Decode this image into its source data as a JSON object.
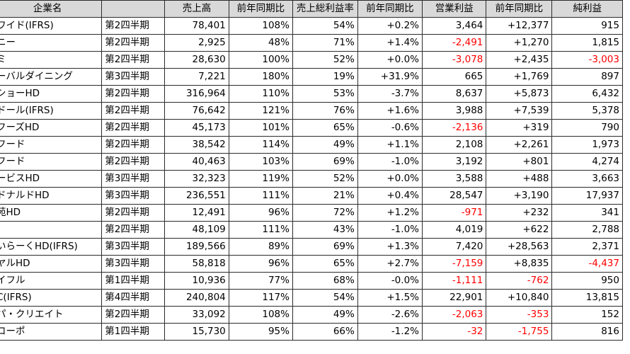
{
  "columns": [
    "企業名",
    "",
    "売上高",
    "前年同期比",
    "売上総利益率",
    "前年同期比",
    "営業利益",
    "前年同期比",
    "純利益"
  ],
  "rows": [
    [
      "ワイド(IFRS)",
      "第2四半期",
      "78,401",
      "108%",
      "54%",
      "+0.2%",
      "3,464",
      "+12,377",
      "915"
    ],
    [
      "ニー",
      "第2四半期",
      "2,925",
      "48%",
      "71%",
      "+1.4%",
      "-2,491",
      "+1,270",
      "1,815"
    ],
    [
      "ミ",
      "第2四半期",
      "28,630",
      "100%",
      "52%",
      "+0.0%",
      "-3,078",
      "+2,435",
      "-3,003"
    ],
    [
      "ーバルダイニング",
      "第3四半期",
      "7,221",
      "180%",
      "19%",
      "+31.9%",
      "665",
      "+1,769",
      "897"
    ],
    [
      "ショーHD",
      "第2四半期",
      "316,964",
      "110%",
      "53%",
      "-3.7%",
      "8,637",
      "+5,873",
      "6,432"
    ],
    [
      "ドール(IFRS)",
      "第2四半期",
      "76,642",
      "121%",
      "76%",
      "+1.6%",
      "3,988",
      "+7,539",
      "5,378"
    ],
    [
      "フーズHD",
      "第2四半期",
      "45,173",
      "101%",
      "65%",
      "-0.6%",
      "-2,136",
      "+319",
      "790"
    ],
    [
      "フード",
      "第2四半期",
      "38,542",
      "114%",
      "49%",
      "+1.1%",
      "2,108",
      "+2,261",
      "1,973"
    ],
    [
      "フード",
      "第2四半期",
      "40,463",
      "103%",
      "69%",
      "-1.0%",
      "3,192",
      "+801",
      "4,274"
    ],
    [
      "ービスHD",
      "第3四半期",
      "32,323",
      "119%",
      "52%",
      "+0.0%",
      "3,588",
      "+488",
      "3,663"
    ],
    [
      "ドナルドHD",
      "第3四半期",
      "236,551",
      "111%",
      "21%",
      "+0.4%",
      "28,547",
      "+3,190",
      "17,937"
    ],
    [
      "苑HD",
      "第2四半期",
      "12,491",
      "96%",
      "72%",
      "+1.2%",
      "-971",
      "+232",
      "341"
    ],
    [
      "",
      "第2四半期",
      "48,109",
      "111%",
      "43%",
      "-1.0%",
      "4,019",
      "+622",
      "2,788"
    ],
    [
      "いらーくHD(IFRS)",
      "第3四半期",
      "189,566",
      "89%",
      "69%",
      "+1.3%",
      "7,420",
      "+28,563",
      "2,371"
    ],
    [
      "ヤルHD",
      "第3四半期",
      "58,818",
      "96%",
      "65%",
      "+2.7%",
      "-7,159",
      "+8,835",
      "-4,437"
    ],
    [
      "イフル",
      "第1四半期",
      "10,936",
      "77%",
      "68%",
      "-0.0%",
      "-1,111",
      "-762",
      "950"
    ],
    [
      "C(IFRS)",
      "第4四半期",
      "240,804",
      "117%",
      "54%",
      "+1.5%",
      "22,901",
      "+10,840",
      "13,815"
    ],
    [
      "パ・クリエイト",
      "第2四半期",
      "33,092",
      "108%",
      "49%",
      "-2.6%",
      "-2,063",
      "-353",
      "152"
    ],
    [
      "コーポ",
      "第1四半期",
      "15,730",
      "95%",
      "66%",
      "-1.2%",
      "-32",
      "-1,755",
      "816"
    ]
  ],
  "colors": {
    "header_bg": "#d9d9d9",
    "negative": "#ff0000",
    "grid": "#2b2b2b"
  }
}
